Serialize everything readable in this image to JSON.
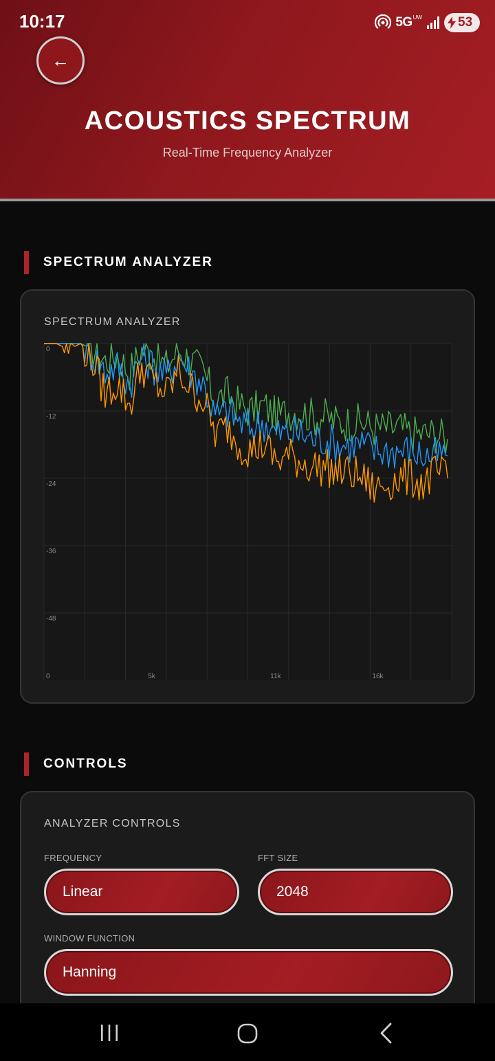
{
  "status_bar": {
    "time": "10:17",
    "network": "5G",
    "network_sub": "UW",
    "battery": "53",
    "icons": [
      "hotspot-icon",
      "signal-icon",
      "charging-icon"
    ]
  },
  "header": {
    "back_icon": "←",
    "title": "ACOUSTICS SPECTRUM",
    "subtitle": "Real-Time Frequency Analyzer"
  },
  "spectrum_section": {
    "label": "SPECTRUM ANALYZER",
    "card_title": "SPECTRUM ANALYZER"
  },
  "controls_section": {
    "label": "CONTROLS",
    "card_title": "ANALYZER CONTROLS",
    "frequency": {
      "label": "FREQUENCY",
      "value": "Linear"
    },
    "fft_size": {
      "label": "FFT SIZE",
      "value": "2048"
    },
    "window_function": {
      "label": "WINDOW FUNCTION",
      "value": "Hanning"
    }
  },
  "chart_data": {
    "type": "line",
    "title": "",
    "xlabel": "",
    "ylabel": "",
    "xlim": [
      0,
      20000
    ],
    "ylim": [
      -60,
      0
    ],
    "x_ticks": [
      {
        "value": 0,
        "label": "0"
      },
      {
        "value": 5000,
        "label": "5k"
      },
      {
        "value": 11000,
        "label": "11k"
      },
      {
        "value": 16000,
        "label": "16k"
      }
    ],
    "y_ticks": [
      {
        "value": 0,
        "label": "0"
      },
      {
        "value": -12,
        "label": "-12"
      },
      {
        "value": -24,
        "label": "-24"
      },
      {
        "value": -36,
        "label": "-36"
      },
      {
        "value": -48,
        "label": "-48"
      }
    ],
    "grid": true,
    "legend": "none",
    "series": [
      {
        "color": "#4caf50",
        "x": [
          0,
          600,
          1200,
          1800,
          2400,
          3000,
          3600,
          4200,
          4800,
          5400,
          6000,
          6600,
          7200,
          7800,
          8400,
          9000,
          9600,
          10200,
          10800,
          11400,
          12000,
          12600,
          13200,
          13800,
          14400,
          15000,
          15600,
          16200,
          16800,
          17400,
          18000,
          18600,
          19200,
          19800
        ],
        "values": [
          0,
          0,
          0,
          0,
          -1,
          -3,
          -2,
          -5,
          -1,
          -2,
          -4,
          -1,
          -3,
          -5,
          -10,
          -9,
          -11,
          -12,
          -11,
          -13,
          -12,
          -12,
          -13,
          -13,
          -14,
          -14,
          -14,
          -15,
          -15,
          -15,
          -16,
          -16,
          -16,
          -17
        ]
      },
      {
        "color": "#2196f3",
        "x": [
          0,
          600,
          1200,
          1800,
          2400,
          3000,
          3600,
          4200,
          4800,
          5400,
          6000,
          6600,
          7200,
          7800,
          8400,
          9000,
          9600,
          10200,
          10800,
          11400,
          12000,
          12600,
          13200,
          13800,
          14400,
          15000,
          15600,
          16200,
          16800,
          17400,
          18000,
          18600,
          19200,
          19800
        ],
        "values": [
          0,
          0,
          0,
          0,
          -2,
          -5,
          -4,
          -7,
          -2,
          -4,
          -6,
          -2,
          -5,
          -7,
          -13,
          -12,
          -14,
          -15,
          -14,
          -16,
          -16,
          -16,
          -17,
          -17,
          -18,
          -18,
          -18,
          -19,
          -19,
          -19,
          -19,
          -20,
          -20,
          -20
        ]
      },
      {
        "color": "#ff9800",
        "x": [
          0,
          600,
          1200,
          1800,
          2400,
          3000,
          3600,
          4200,
          4800,
          5400,
          6000,
          6600,
          7200,
          7800,
          8400,
          9000,
          9600,
          10200,
          10800,
          11400,
          12000,
          12600,
          13200,
          13800,
          14400,
          15000,
          15600,
          16200,
          16800,
          17400,
          18000,
          18600,
          19200,
          19800
        ],
        "values": [
          0,
          0,
          -1,
          0,
          -3,
          -9,
          -7,
          -11,
          -4,
          -7,
          -9,
          -5,
          -8,
          -10,
          -16,
          -15,
          -18,
          -19,
          -18,
          -21,
          -20,
          -21,
          -22,
          -22,
          -23,
          -23,
          -24,
          -26,
          -25,
          -24,
          -24,
          -25,
          -23,
          -24
        ]
      }
    ]
  }
}
